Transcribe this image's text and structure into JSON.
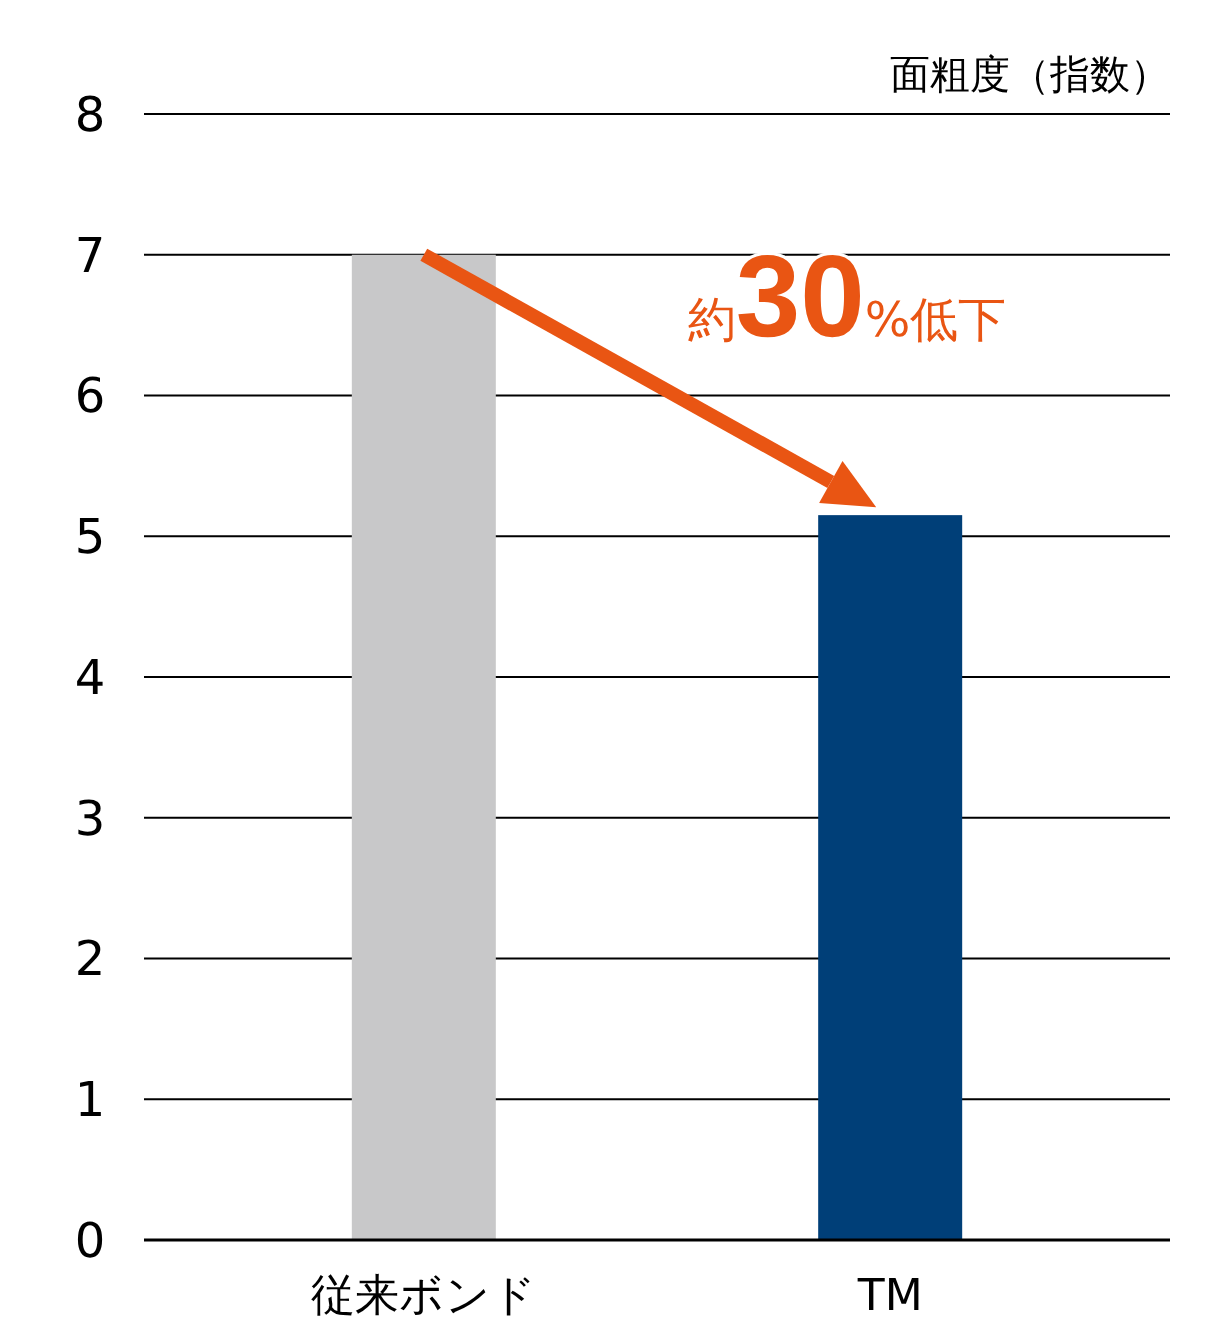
{
  "chart_data": {
    "type": "bar",
    "ylabel": "面粗度（指数）",
    "categories": [
      "従来ボンド",
      "TM"
    ],
    "values": [
      7,
      5.15
    ],
    "colors": [
      "#c8c8c9",
      "#003f78"
    ],
    "ylim": [
      0,
      8
    ],
    "yticks": [
      0,
      1,
      2,
      3,
      4,
      5,
      6,
      7,
      8
    ],
    "grid": "y",
    "annotations": [
      "約30%低下"
    ]
  }
}
